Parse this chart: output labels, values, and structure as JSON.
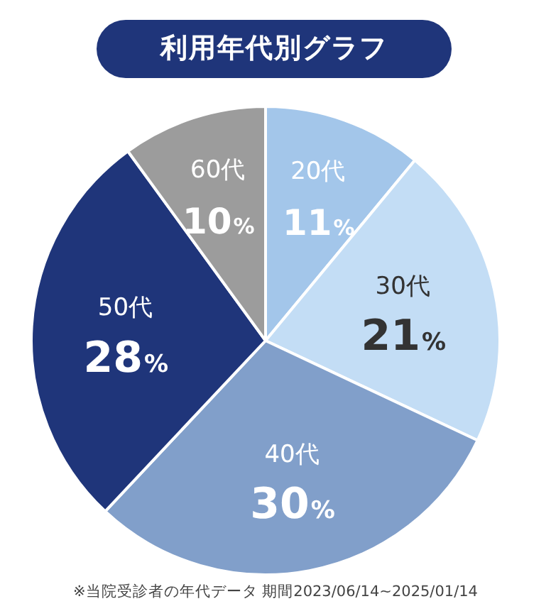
{
  "chart_data": {
    "type": "pie",
    "title": "利用年代別グラフ",
    "categories": [
      "20代",
      "30代",
      "40代",
      "50代",
      "60代"
    ],
    "values": [
      11,
      21,
      30,
      28,
      10
    ],
    "value_labels": [
      "11%",
      "21%",
      "30%",
      "28%",
      "10%"
    ],
    "colors": [
      "#a3c6ea",
      "#c3ddf5",
      "#819fca",
      "#1f357a",
      "#9c9c9c"
    ],
    "annotations": [
      "※当院受診者の年代データ 期間2023/06/14~2025/01/14"
    ],
    "legend": false
  }
}
